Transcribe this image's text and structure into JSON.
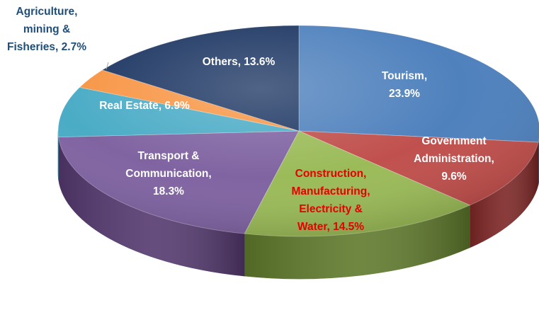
{
  "chart_data": {
    "type": "pie",
    "title": "",
    "legend": "none",
    "slices": [
      {
        "lines": [
          "Tourism,",
          "23.9%"
        ],
        "category": "Tourism",
        "value": 23.9,
        "color": "#4f81bd",
        "side": "#30517e",
        "text_color": "#ffffff"
      },
      {
        "lines": [
          "Government",
          "Administration,",
          "9.6%"
        ],
        "category": "Government Administration",
        "value": 9.6,
        "color": "#c0504d",
        "side": "#7c2625",
        "text_color": "#ffffff"
      },
      {
        "lines": [
          "Construction,",
          "Manufacturing,",
          "Electricity &",
          "Water, 14.5%"
        ],
        "category": "Construction, Manufacturing, Electricity & Water",
        "value": 14.5,
        "color": "#9bbb59",
        "side": "#5f7a2c",
        "text_color": "#e60000"
      },
      {
        "lines": [
          "Transport &",
          "Communication,",
          "18.3%"
        ],
        "category": "Transport & Communication",
        "value": 18.3,
        "color": "#8064a2",
        "side": "#54396f",
        "text_color": "#ffffff"
      },
      {
        "lines": [
          "Real Estate, 6.9%"
        ],
        "category": "Real Estate",
        "value": 6.9,
        "color": "#4bacc6",
        "side": "#2d7488",
        "text_color": "#ffffff"
      },
      {
        "lines": [
          "Agriculture,",
          "mining &",
          "Fisheries, 2.7%"
        ],
        "category": "Agriculture, mining & Fisheries",
        "value": 2.7,
        "color": "#f79646",
        "side": "#b15f1d",
        "text_color": "#1f4e79"
      },
      {
        "lines": [
          "Others, 13.6%"
        ],
        "category": "Others",
        "value": 13.6,
        "color": "#1f3864",
        "side": "#111f3a",
        "text_color": "#ffffff"
      }
    ]
  }
}
